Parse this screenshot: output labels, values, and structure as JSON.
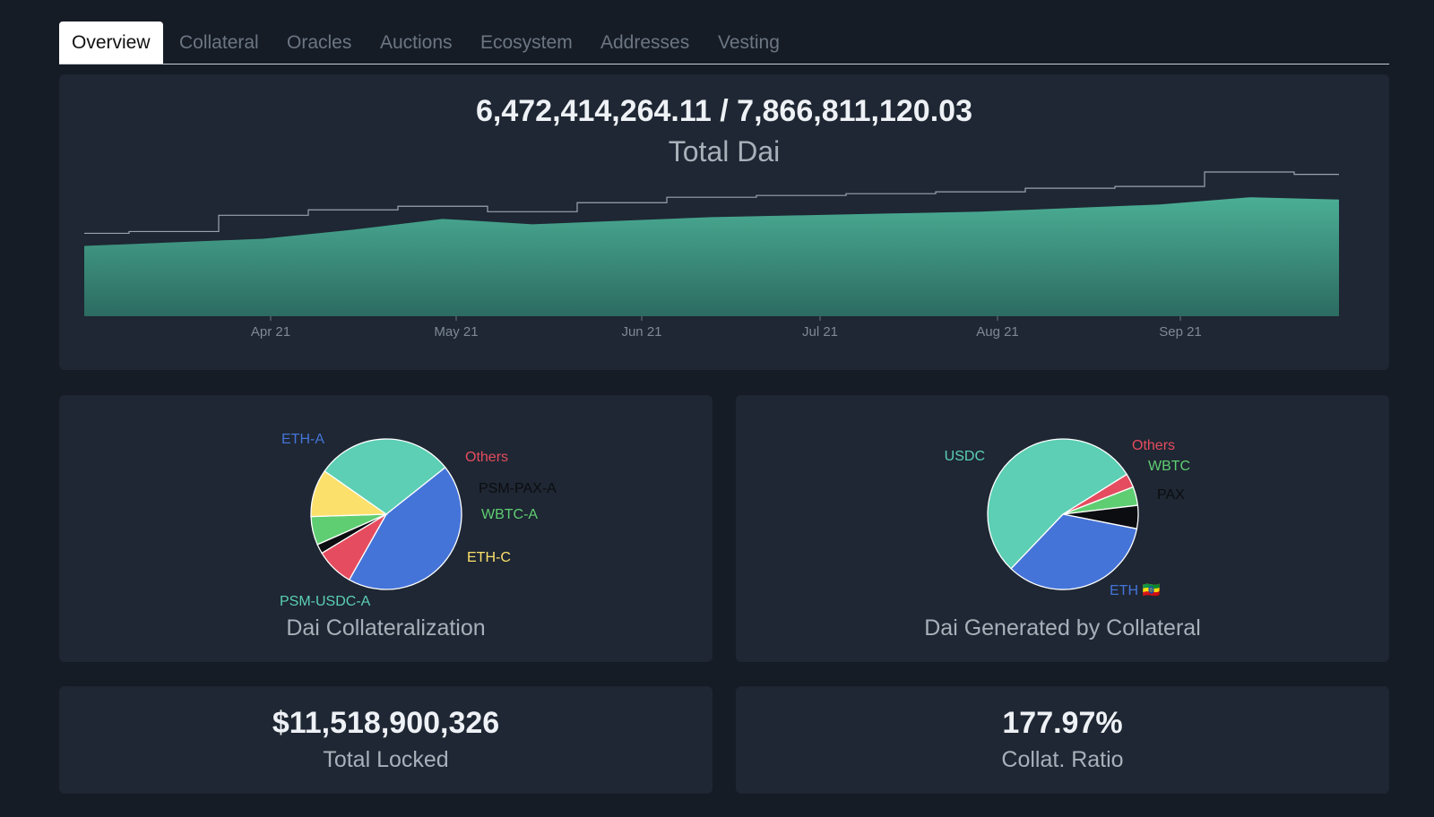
{
  "tabs": [
    {
      "label": "Overview",
      "active": true
    },
    {
      "label": "Collateral"
    },
    {
      "label": "Oracles"
    },
    {
      "label": "Auctions"
    },
    {
      "label": "Ecosystem"
    },
    {
      "label": "Addresses"
    },
    {
      "label": "Vesting"
    }
  ],
  "total_dai": {
    "value": "6,472,414,264.11 / 7,866,811,120.03",
    "label": "Total Dai"
  },
  "chart_data": [
    {
      "type": "area",
      "x_tick_labels": [
        "Apr 21",
        "May 21",
        "Jun 21",
        "Jul 21",
        "Aug 21",
        "Sep 21"
      ],
      "x": [
        "Mar 21",
        "Apr 1",
        "Apr 15",
        "May 1",
        "May 15",
        "May 20",
        "Jun 1",
        "Jun 15",
        "Jul 1",
        "Jul 15",
        "Aug 1",
        "Aug 15",
        "Sep 1",
        "Sep 15",
        "Sep 28"
      ],
      "series": [
        {
          "values": [
            3.9,
            4.1,
            4.3,
            4.8,
            5.4,
            5.1,
            5.3,
            5.5,
            5.6,
            5.7,
            5.8,
            6.0,
            6.2,
            6.6,
            6.47
          ],
          "color": "#3fa58d"
        },
        {
          "values": [
            4.6,
            4.7,
            5.6,
            5.9,
            6.1,
            5.8,
            6.3,
            6.6,
            6.7,
            6.8,
            6.9,
            7.1,
            7.2,
            8.0,
            7.87
          ],
          "color": "#9aa3ad"
        }
      ]
    },
    {
      "type": "pie",
      "title": "Dai Collateralization",
      "labels": [
        "ETH-A",
        "Others",
        "PSM-PAX-A",
        "WBTC-A",
        "ETH-C",
        "PSM-USDC-A"
      ],
      "values": [
        43,
        8,
        2,
        6,
        10,
        29
      ],
      "colors": [
        "#4574d9",
        "#e64c5f",
        "#0b0d10",
        "#5fce72",
        "#fce06c",
        "#5ccfb4"
      ]
    },
    {
      "type": "pie",
      "title": "Dai Generated by Collateral",
      "labels": [
        "Others",
        "WBTC",
        "PAX",
        "ETH 🇪🇹",
        "USDC"
      ],
      "values": [
        3,
        4,
        5,
        34,
        54
      ],
      "colors": [
        "#e64c5f",
        "#5fce72",
        "#0b0d10",
        "#4574d9",
        "#5ccfb4"
      ]
    }
  ],
  "total_locked": {
    "value": "$11,518,900,326",
    "label": "Total Locked"
  },
  "collat_ratio": {
    "value": "177.97%",
    "label": "Collat. Ratio"
  }
}
